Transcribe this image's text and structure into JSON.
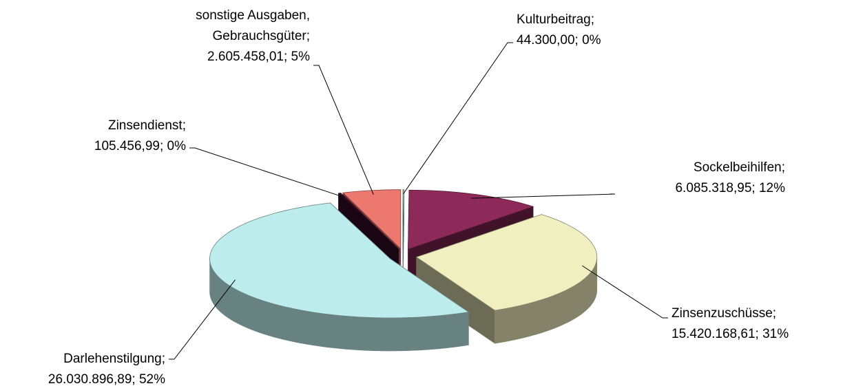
{
  "chart_data": {
    "type": "pie3d",
    "categories": [
      "Kulturbeitrag;",
      "Sockelbeihilfen;",
      "Zinsenzuschüsse;",
      "Darlehenstilgung;",
      "Zinsendienst;",
      "sonstige Ausgaben,\nGebrauchsgüter;"
    ],
    "values": [
      44300.0,
      6085318.95,
      15420168.61,
      26030896.89,
      105456.99,
      2605458.01
    ],
    "value_labels": [
      "44.300,00; 0%",
      "6.085.318,95; 12%",
      "15.420.168,61; 31%",
      "26.030.896,89; 52%",
      "105.456,99; 0%",
      "2.605.458,01; 5%"
    ],
    "colors": [
      "#ffffff",
      "#8e2a5a",
      "#f0efc0",
      "#bdeced",
      "#3a0a2a",
      "#ec7870"
    ]
  }
}
